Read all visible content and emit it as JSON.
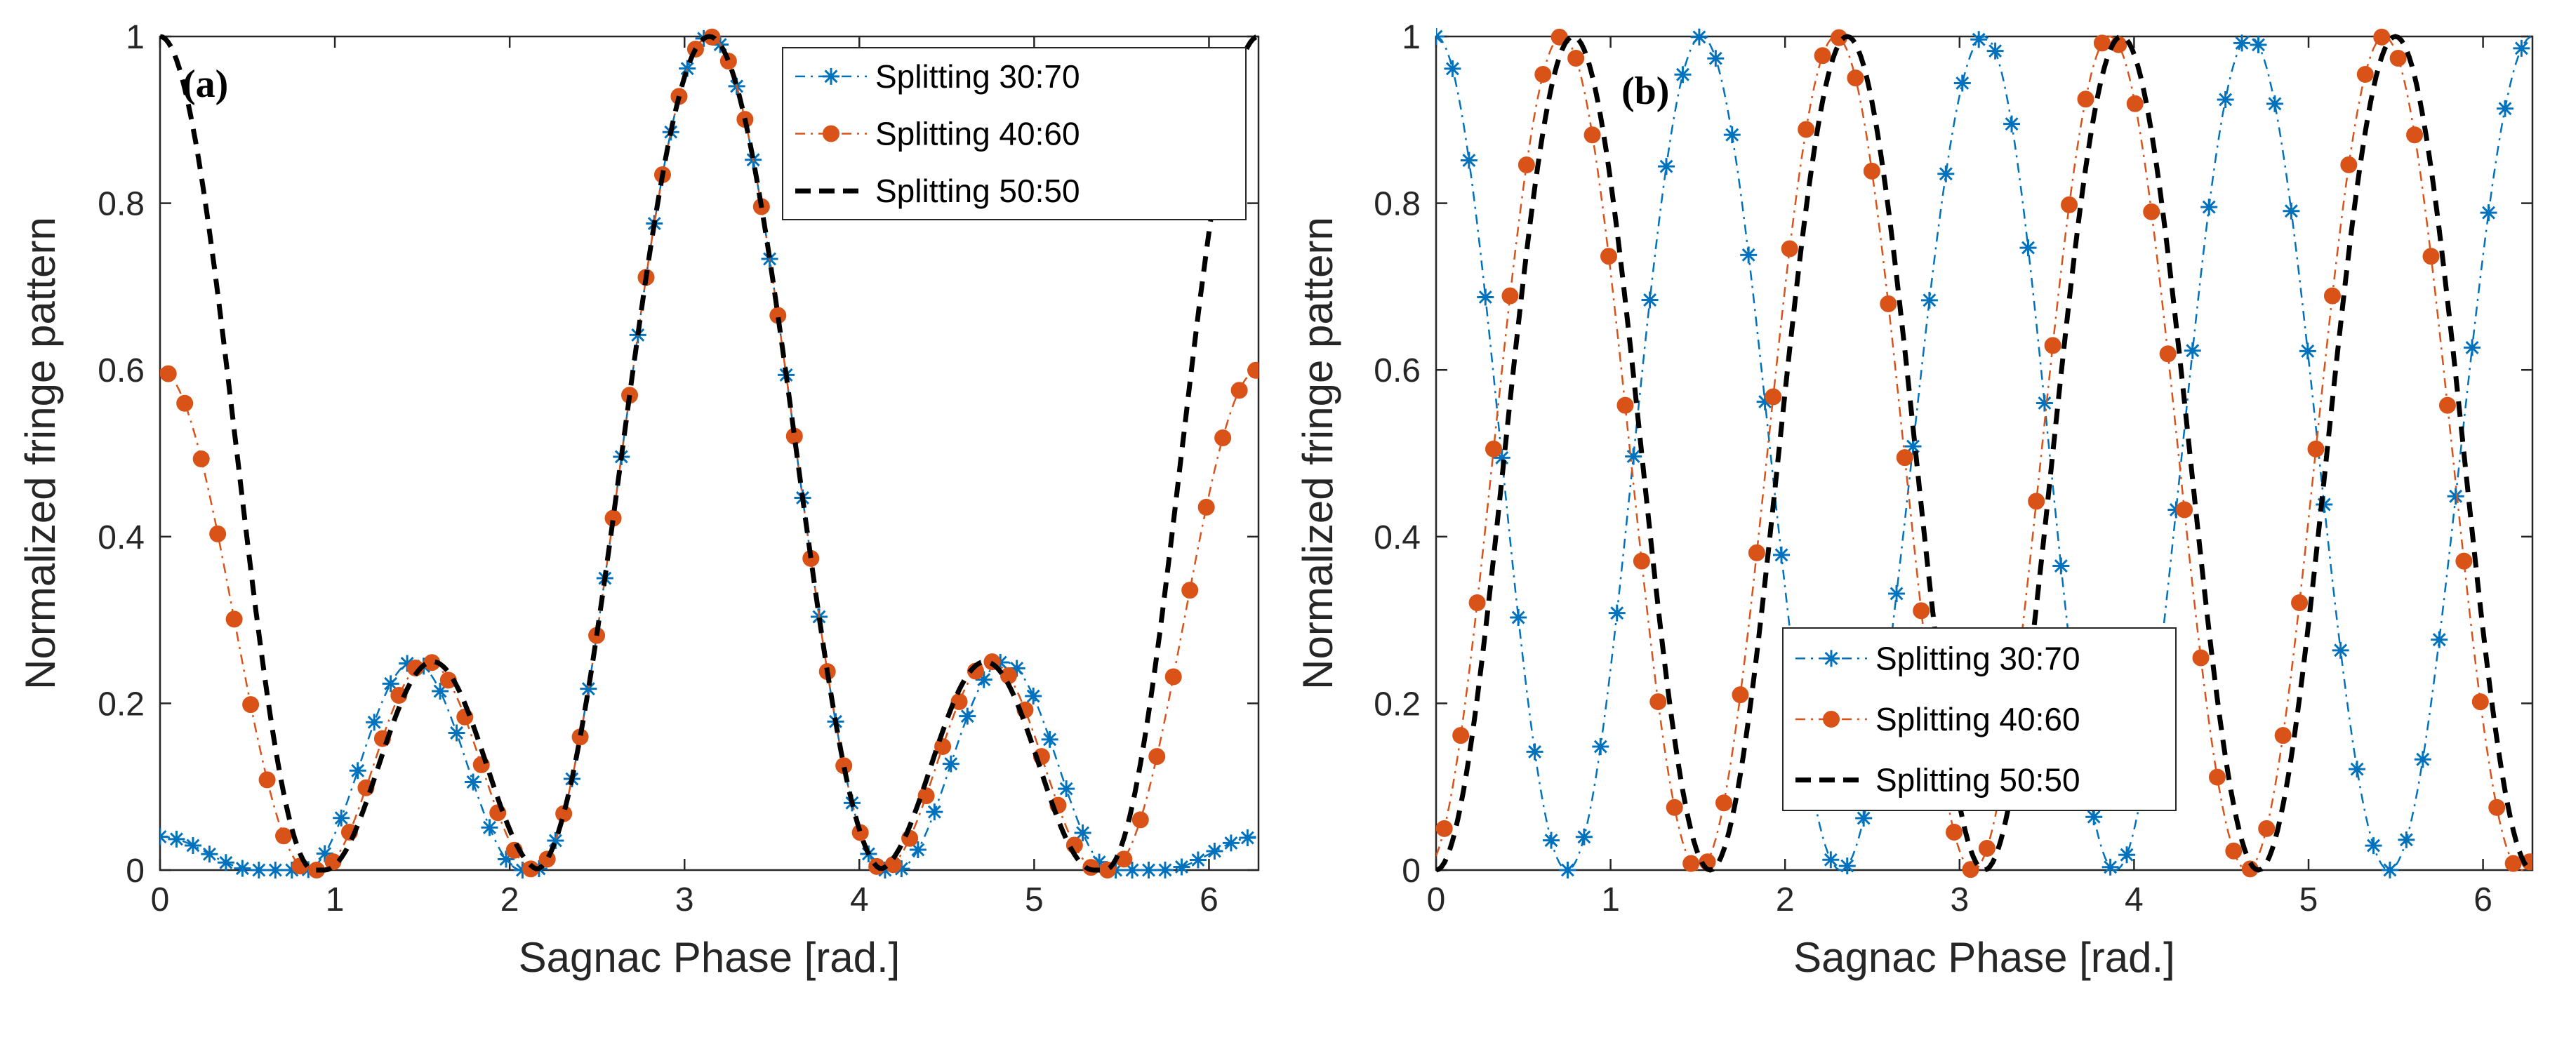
{
  "chart_data": [
    {
      "type": "line",
      "panel_label": "(a)",
      "xlabel": "Sagnac Phase  [rad.]",
      "ylabel": "Normalized fringe pattern",
      "xlim": [
        0,
        6.2832
      ],
      "ylim": [
        0,
        1
      ],
      "xticks": [
        0,
        1,
        2,
        3,
        4,
        5,
        6
      ],
      "xtick_labels": [
        "0",
        "1",
        "2",
        "3",
        "4",
        "5",
        "6"
      ],
      "yticks": [
        0,
        0.2,
        0.4,
        0.6,
        0.8,
        1
      ],
      "ytick_labels": [
        "0",
        "0.2",
        "0.4",
        "0.6",
        "0.8",
        "1"
      ],
      "grid": false,
      "legend_position": "top-right",
      "series": [
        {
          "name": "Splitting 30:70",
          "color": "#0072BD",
          "line": "dash-dot",
          "marker": "star",
          "r": 0.3,
          "mode": "a"
        },
        {
          "name": "Splitting 40:60",
          "color": "#D95319",
          "line": "dash-dot",
          "marker": "circle",
          "r": 0.4,
          "mode": "a"
        },
        {
          "name": "Splitting 50:50",
          "color": "#000000",
          "line": "dashed",
          "marker": "none",
          "r": 0.5,
          "mode": "a"
        }
      ]
    },
    {
      "type": "line",
      "panel_label": "(b)",
      "xlabel": "Sagnac Phase  [rad.]",
      "ylabel": "Normalized fringe pattern",
      "xlim": [
        0,
        6.2832
      ],
      "ylim": [
        0,
        1
      ],
      "xticks": [
        0,
        1,
        2,
        3,
        4,
        5,
        6
      ],
      "xtick_labels": [
        "0",
        "1",
        "2",
        "3",
        "4",
        "5",
        "6"
      ],
      "yticks": [
        0,
        0.2,
        0.4,
        0.6,
        0.8,
        1
      ],
      "ytick_labels": [
        "0",
        "0.2",
        "0.4",
        "0.6",
        "0.8",
        "1"
      ],
      "grid": false,
      "legend_position": "bottom-center",
      "series": [
        {
          "name": "Splitting 30:70",
          "color": "#0072BD",
          "line": "dash-dot",
          "marker": "star",
          "r": 0.3,
          "mode": "b"
        },
        {
          "name": "Splitting 40:60",
          "color": "#D95319",
          "line": "dash-dot",
          "marker": "circle",
          "r": 0.4,
          "mode": "b"
        },
        {
          "name": "Splitting 50:50",
          "color": "#000000",
          "line": "dashed",
          "marker": "none",
          "r": 0.5,
          "mode": "b"
        }
      ]
    }
  ]
}
